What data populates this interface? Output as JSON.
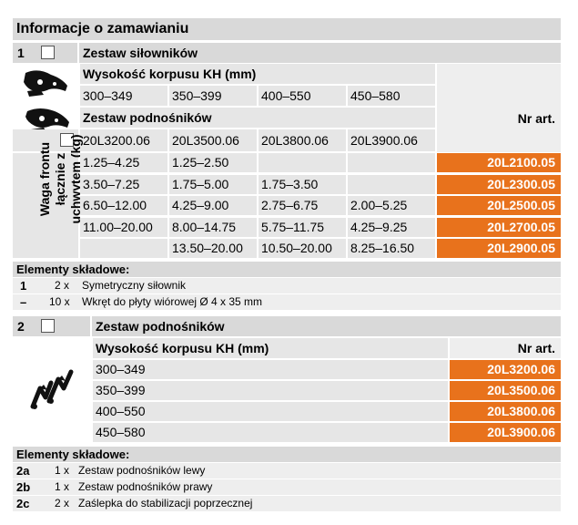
{
  "title": "Informacje o zamawianiu",
  "section1": {
    "number": "1",
    "name": "Zestaw siłowników",
    "height_label": "Wysokość korpusu KH (mm)",
    "heights": [
      "300–349",
      "350–399",
      "400–550",
      "450–580"
    ],
    "lifter_set_label": "Zestaw podnośników",
    "lifter_codes": [
      "20L3200.06",
      "20L3500.06",
      "20L3800.06",
      "20L3900.06"
    ],
    "art_header": "Nr art.",
    "weight_label_line1": "Waga frontu",
    "weight_label_line2": "łącznie z",
    "weight_label_line3": "uchwytem (kg)",
    "rows": [
      {
        "cells": [
          "1.25–4.25",
          "1.25–2.50",
          "",
          ""
        ],
        "art": "20L2100.05"
      },
      {
        "cells": [
          "3.50–7.25",
          "1.75–5.00",
          "1.75–3.50",
          ""
        ],
        "art": "20L2300.05"
      },
      {
        "cells": [
          "6.50–12.00",
          "4.25–9.00",
          "2.75–6.75",
          "2.00–5.25"
        ],
        "art": "20L2500.05"
      },
      {
        "cells": [
          "11.00–20.00",
          "8.00–14.75",
          "5.75–11.75",
          "4.25–9.25"
        ],
        "art": "20L2700.05"
      },
      {
        "cells": [
          "",
          "13.50–20.00",
          "10.50–20.00",
          "8.25–16.50"
        ],
        "art": "20L2900.05"
      }
    ],
    "components_title": "Elementy składowe:",
    "components": [
      {
        "id": "1",
        "qty": "2 x",
        "desc": "Symetryczny siłownik"
      },
      {
        "id": "–",
        "qty": "10 x",
        "desc": "Wkręt do płyty wiórowej Ø 4 x 35 mm"
      }
    ]
  },
  "section2": {
    "number": "2",
    "name": "Zestaw podnośników",
    "height_label": "Wysokość korpusu KH (mm)",
    "art_header": "Nr art.",
    "rows": [
      {
        "height": "300–349",
        "art": "20L3200.06"
      },
      {
        "height": "350–399",
        "art": "20L3500.06"
      },
      {
        "height": "400–550",
        "art": "20L3800.06"
      },
      {
        "height": "450–580",
        "art": "20L3900.06"
      }
    ],
    "components_title": "Elementy składowe:",
    "components": [
      {
        "id": "2a",
        "qty": "1 x",
        "desc": "Zestaw podnośników lewy"
      },
      {
        "id": "2b",
        "qty": "1 x",
        "desc": "Zestaw podnośników prawy"
      },
      {
        "id": "2c",
        "qty": "2 x",
        "desc": "Zaślepka do stabilizacji poprzecznej"
      }
    ]
  },
  "colors": {
    "accent": "#e8721c",
    "header_gray": "#d9d9d9",
    "cell_gray": "#e6e6e6",
    "light_gray": "#eeeeee"
  },
  "icons": [
    "actuator-set-icon",
    "lifter-set-icon",
    "checkbox-icon"
  ]
}
